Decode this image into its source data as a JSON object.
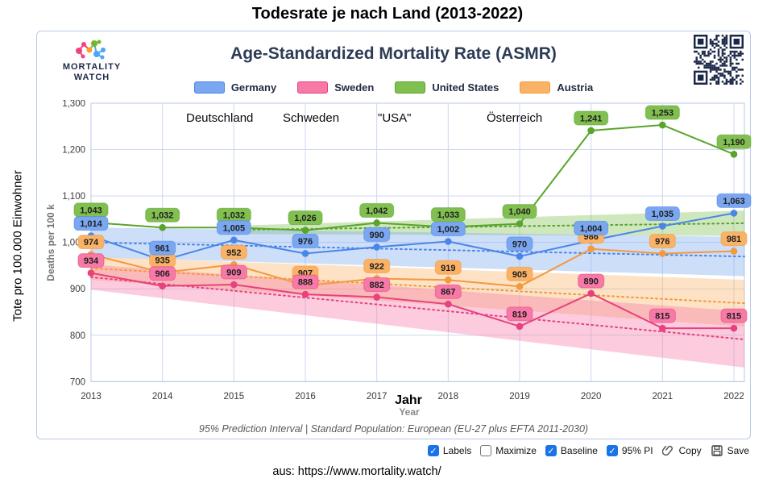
{
  "page": {
    "title": "Todesrate je nach Land (2013-2022)",
    "ylabel_de": "Tote pro 100.000 Einwohner",
    "source_caption": "aus: https://www.mortality.watch/"
  },
  "card": {
    "title": "Age-Standardized Mortality Rate (ASMR)",
    "logo_line1": "MORTALITY",
    "logo_line2": "WATCH",
    "footer_caption": "95% Prediction Interval | Standard Population: European (EU-27 plus EFTA 2011-2030)"
  },
  "annotations": {
    "germany_de": "Deutschland",
    "sweden_de": "Schweden",
    "usa_de": "\"USA\"",
    "austria_de": "Österreich",
    "xlabel_de": "Jahr"
  },
  "chart_data": {
    "type": "line",
    "x": [
      2013,
      2014,
      2015,
      2016,
      2017,
      2018,
      2019,
      2020,
      2021,
      2022
    ],
    "xlabel": "Year",
    "ylabel": "Deaths per 100 k",
    "ylim": [
      700,
      1300
    ],
    "yticks": [
      700,
      800,
      900,
      1000,
      1100,
      1200,
      1300
    ],
    "grid": true,
    "legend_position": "top",
    "series": [
      {
        "name": "Germany",
        "color": "#4a86e8",
        "fill": "#7ba7f0",
        "values": [
          1014,
          961,
          1005,
          976,
          990,
          1002,
          970,
          1004,
          1035,
          1063
        ],
        "baseline": {
          "x": [
            2013,
            2022
          ],
          "y": [
            1000,
            970
          ]
        },
        "pi_halfwidth": [
          32,
          42
        ]
      },
      {
        "name": "Sweden",
        "color": "#e8417d",
        "fill": "#f779a7",
        "values": [
          934,
          906,
          909,
          888,
          882,
          867,
          819,
          890,
          815,
          815
        ],
        "baseline": {
          "x": [
            2013,
            2022
          ],
          "y": [
            925,
            793
          ]
        },
        "pi_halfwidth": [
          27,
          60
        ]
      },
      {
        "name": "United States",
        "color": "#59a42c",
        "fill": "#82bf51",
        "values": [
          1043,
          1032,
          1032,
          1026,
          1042,
          1033,
          1040,
          1241,
          1253,
          1190
        ],
        "baseline": {
          "x": [
            2015,
            2022
          ],
          "y": [
            1027,
            1041
          ]
        },
        "pi_halfwidth": [
          9,
          27
        ]
      },
      {
        "name": "Austria",
        "color": "#f3993e",
        "fill": "#f9b266",
        "values": [
          974,
          935,
          952,
          907,
          922,
          919,
          905,
          986,
          976,
          981
        ],
        "baseline": {
          "x": [
            2013,
            2022
          ],
          "y": [
            944,
            870
          ]
        },
        "pi_halfwidth": [
          25,
          50
        ]
      }
    ]
  },
  "controls": {
    "checkboxes": [
      {
        "label": "Labels",
        "checked": true
      },
      {
        "label": "Maximize",
        "checked": false
      },
      {
        "label": "Baseline",
        "checked": true
      },
      {
        "label": "95% PI",
        "checked": true
      }
    ],
    "buttons": [
      {
        "label": "Copy",
        "icon": "paperclip-icon"
      },
      {
        "label": "Save",
        "icon": "floppy-icon"
      }
    ]
  },
  "colors": {
    "accent_checkbox": "#1a73e8",
    "card_border": "#b7c9e8",
    "gridline": "#ccd8f0",
    "plot_border": "#b8c8e8"
  }
}
